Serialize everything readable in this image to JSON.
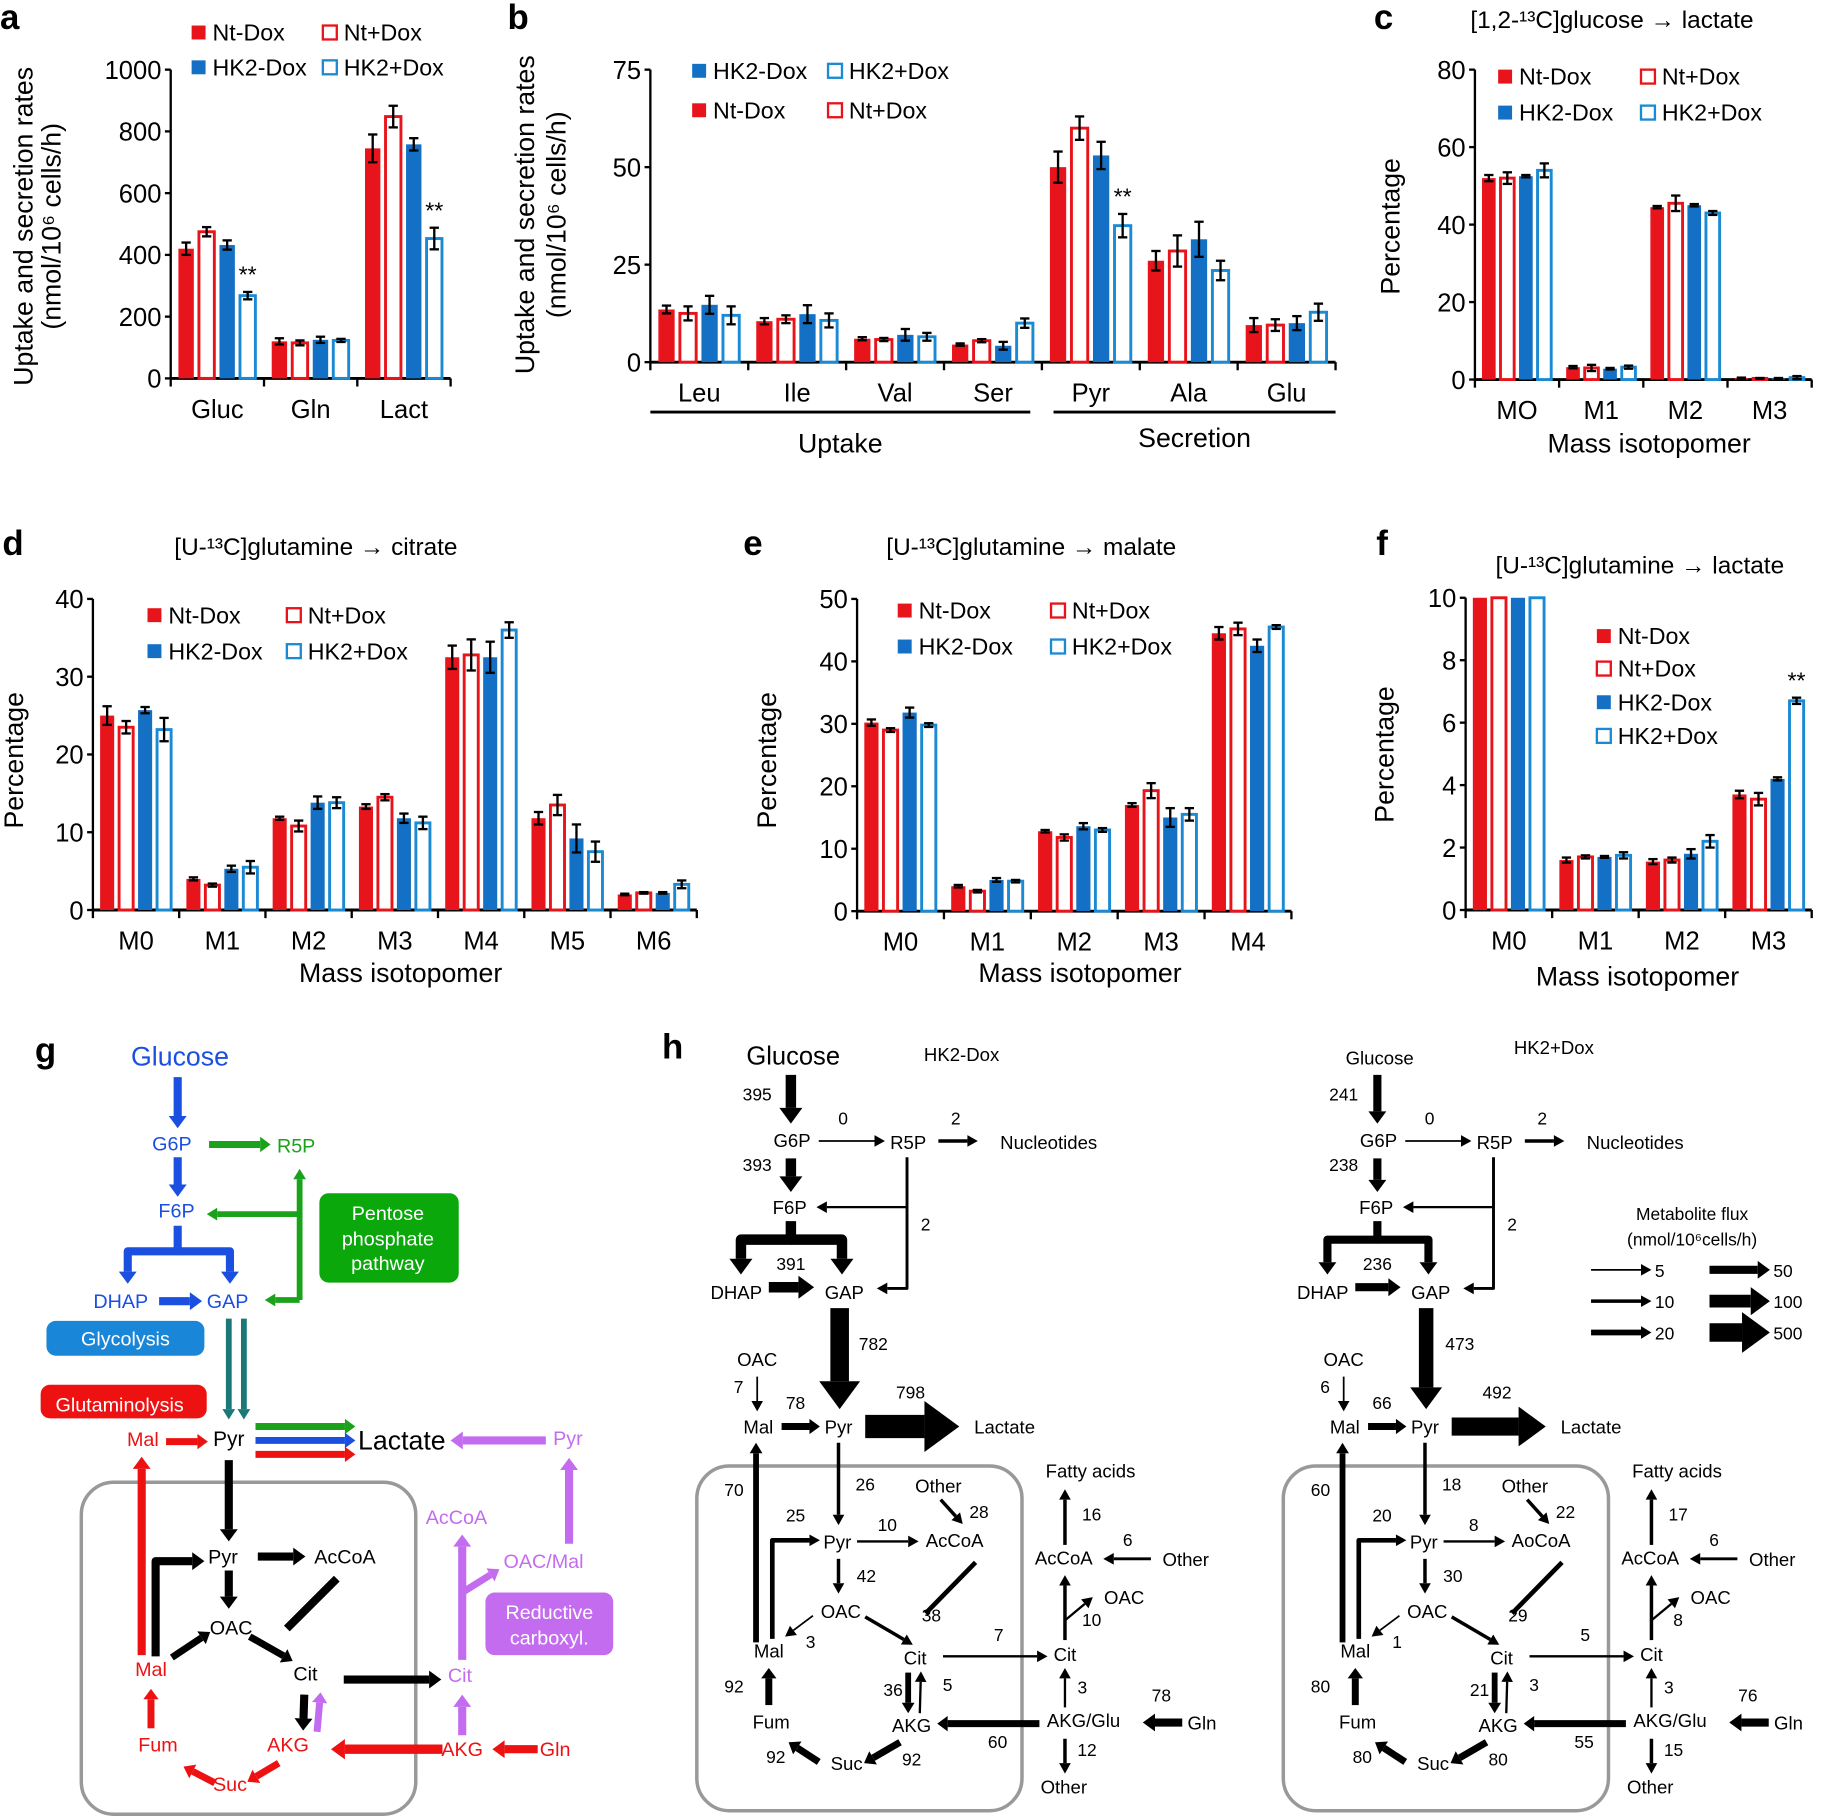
{
  "panel_labels": [
    "a",
    "b",
    "c",
    "d",
    "e",
    "f",
    "g",
    "h"
  ],
  "series_styles": [
    {
      "name": "Nt-Dox",
      "color": "#e8141b",
      "filled": true
    },
    {
      "name": "Nt+Dox",
      "color": "#e8141b",
      "filled": false
    },
    {
      "name": "HK2-Dox",
      "color": "#1470c4",
      "filled": true
    },
    {
      "name": "HK2+Dox",
      "color": "#1a8ad4",
      "filled": false
    }
  ],
  "chart_data": [
    {
      "id": "a",
      "type": "bar",
      "title": "",
      "ylabel": "Uptake and secretion rates",
      "ylabel2": "(nmol/10⁶ cells/h)",
      "xlabel": "",
      "ylim": [
        0,
        1000
      ],
      "yticks": [
        0,
        200,
        400,
        600,
        800,
        1000
      ],
      "categories": [
        "Gluc",
        "Gln",
        "Lact"
      ],
      "series": [
        {
          "name": "Nt-Dox",
          "values": [
            420,
            120,
            745
          ],
          "errors": [
            20,
            10,
            45
          ]
        },
        {
          "name": "Nt+Dox",
          "values": [
            475,
            115,
            848
          ],
          "errors": [
            15,
            8,
            35
          ]
        },
        {
          "name": "HK2-Dox",
          "values": [
            432,
            125,
            758
          ],
          "errors": [
            15,
            10,
            20
          ]
        },
        {
          "name": "HK2+Dox",
          "values": [
            268,
            123,
            453
          ],
          "errors": [
            12,
            5,
            35
          ]
        }
      ],
      "significance": [
        {
          "series": 3,
          "category": 0,
          "mark": "**"
        },
        {
          "series": 3,
          "category": 2,
          "mark": "**"
        }
      ]
    },
    {
      "id": "b",
      "type": "bar",
      "title": "",
      "ylabel": "Uptake and secretion rates",
      "ylabel2": "(nmol/10⁶ cells/h)",
      "xlabel": "",
      "ylim": [
        0,
        75
      ],
      "yticks": [
        0,
        25,
        50,
        75
      ],
      "categories": [
        "Leu",
        "Ile",
        "Val",
        "Ser",
        "Pyr",
        "Ala",
        "Glu"
      ],
      "groups": [
        {
          "label": "Uptake",
          "from": 0,
          "to": 3
        },
        {
          "label": "Secretion",
          "from": 4,
          "to": 6
        }
      ],
      "series": [
        {
          "name": "Nt-Dox",
          "values": [
            13.5,
            10.5,
            6,
            4.5,
            50,
            26,
            9.5
          ],
          "errors": [
            1,
            0.8,
            0.4,
            0.3,
            4,
            2.5,
            1.8
          ]
        },
        {
          "name": "Nt+Dox",
          "values": [
            12.5,
            11,
            5.8,
            5.5,
            60,
            28.5,
            9.5
          ],
          "errors": [
            1.8,
            1,
            0.4,
            0.4,
            3,
            4,
            1.5
          ]
        },
        {
          "name": "HK2-Dox",
          "values": [
            14.7,
            12.3,
            7,
            4.2,
            53,
            31.5,
            10
          ],
          "errors": [
            2.3,
            2.3,
            1.5,
            1,
            3.5,
            4.5,
            1.8
          ]
        },
        {
          "name": "HK2+Dox",
          "values": [
            12,
            10.7,
            6.5,
            10,
            35,
            23.5,
            12.8
          ],
          "errors": [
            2.3,
            1.8,
            1,
            1.2,
            3,
            2.5,
            2.2
          ]
        }
      ],
      "significance": [
        {
          "series": 3,
          "category": 4,
          "mark": "**"
        }
      ]
    },
    {
      "id": "c",
      "type": "bar",
      "title": "[1,2-¹³C]glucose → lactate",
      "ylabel": "Percentage",
      "xlabel": "Mass isotopomer",
      "ylim": [
        0,
        80
      ],
      "yticks": [
        0,
        20,
        40,
        60,
        80
      ],
      "categories": [
        "MO",
        "M1",
        "M2",
        "M3"
      ],
      "series": [
        {
          "name": "Nt-Dox",
          "values": [
            52,
            3.2,
            44.5,
            0.4
          ],
          "errors": [
            0.8,
            0.3,
            0.3,
            0.1
          ]
        },
        {
          "name": "Nt+Dox",
          "values": [
            52,
            3,
            45.5,
            0.3
          ],
          "errors": [
            1.5,
            0.8,
            2,
            0.1
          ]
        },
        {
          "name": "HK2-Dox",
          "values": [
            52.5,
            2.8,
            45,
            0.3
          ],
          "errors": [
            0.3,
            0.2,
            0.3,
            0.1
          ]
        },
        {
          "name": "HK2+Dox",
          "values": [
            54,
            3.2,
            43,
            0.5
          ],
          "errors": [
            1.8,
            0.4,
            0.5,
            0.4
          ]
        }
      ],
      "significance": []
    },
    {
      "id": "d",
      "type": "bar",
      "title": "[U-¹³C]glutamine → citrate",
      "ylabel": "Percentage",
      "xlabel": "Mass isotopomer",
      "ylim": [
        0,
        40
      ],
      "yticks": [
        0,
        10,
        20,
        30,
        40
      ],
      "categories": [
        "M0",
        "M1",
        "M2",
        "M3",
        "M4",
        "M5",
        "M6"
      ],
      "series": [
        {
          "name": "Nt-Dox",
          "values": [
            25,
            4,
            11.8,
            13.3,
            32.5,
            11.8,
            2
          ],
          "errors": [
            1.2,
            0.2,
            0.2,
            0.3,
            1.5,
            0.8,
            0.1
          ]
        },
        {
          "name": "Nt+Dox",
          "values": [
            23.5,
            3.2,
            10.8,
            14.5,
            32.8,
            13.5,
            2.2
          ],
          "errors": [
            0.8,
            0.2,
            0.7,
            0.4,
            2,
            1.3,
            0.1
          ]
        },
        {
          "name": "HK2-Dox",
          "values": [
            25.7,
            5.3,
            13.8,
            11.8,
            32.5,
            9.2,
            2.2
          ],
          "errors": [
            0.4,
            0.4,
            0.8,
            0.6,
            2,
            1.8,
            0.1
          ]
        },
        {
          "name": "HK2+Dox",
          "values": [
            23.2,
            5.5,
            13.8,
            11.2,
            36,
            7.5,
            3.3
          ],
          "errors": [
            1.5,
            0.8,
            0.7,
            0.8,
            1,
            1.3,
            0.5
          ]
        }
      ],
      "significance": []
    },
    {
      "id": "e",
      "type": "bar",
      "title": "[U-¹³C]glutamine → malate",
      "ylabel": "Percentage",
      "xlabel": "Mass isotopomer",
      "ylim": [
        0,
        50
      ],
      "yticks": [
        0,
        10,
        20,
        30,
        40,
        50
      ],
      "categories": [
        "M0",
        "M1",
        "M2",
        "M3",
        "M4"
      ],
      "series": [
        {
          "name": "Nt-Dox",
          "values": [
            30.2,
            4,
            12.8,
            17,
            44.5
          ],
          "errors": [
            0.5,
            0.2,
            0.2,
            0.3,
            1
          ]
        },
        {
          "name": "Nt+Dox",
          "values": [
            29,
            3.2,
            11.8,
            19.3,
            45.2
          ],
          "errors": [
            0.3,
            0.2,
            0.5,
            1.2,
            1
          ]
        },
        {
          "name": "HK2-Dox",
          "values": [
            31.8,
            5,
            13.6,
            15,
            42.5
          ],
          "errors": [
            0.8,
            0.3,
            0.5,
            1.5,
            1
          ]
        },
        {
          "name": "HK2+Dox",
          "values": [
            29.8,
            4.8,
            13,
            15.5,
            45.5
          ],
          "errors": [
            0.3,
            0.2,
            0.3,
            1,
            0.3
          ]
        }
      ],
      "significance": []
    },
    {
      "id": "f",
      "type": "bar",
      "title": "[U-¹³C]glutamine → lactate",
      "ylabel": "Percentage",
      "xlabel": "Mass isotopomer",
      "ylim": [
        0,
        10
      ],
      "yticks": [
        0,
        2,
        4,
        6,
        8,
        10
      ],
      "categories": [
        "M0",
        "M1",
        "M2",
        "M3"
      ],
      "note": "M0 bars exceed the axis range and are clipped at 10",
      "series": [
        {
          "name": "Nt-Dox",
          "values": [
            10,
            1.6,
            1.55,
            3.7
          ],
          "errors": [
            0,
            0.08,
            0.08,
            0.12
          ]
        },
        {
          "name": "Nt+Dox",
          "values": [
            10,
            1.7,
            1.6,
            3.55
          ],
          "errors": [
            0,
            0.05,
            0.08,
            0.2
          ]
        },
        {
          "name": "HK2-Dox",
          "values": [
            10,
            1.7,
            1.8,
            4.2
          ],
          "errors": [
            0,
            0.03,
            0.15,
            0.05
          ]
        },
        {
          "name": "HK2+Dox",
          "values": [
            10,
            1.75,
            2.2,
            6.7
          ],
          "errors": [
            0,
            0.1,
            0.2,
            0.1
          ]
        }
      ],
      "significance": [
        {
          "series": 3,
          "category": 3,
          "mark": "**"
        }
      ]
    }
  ],
  "g": {
    "colors": {
      "blue": "#1a4fe0",
      "green": "#1aa31a",
      "red": "#ee1111",
      "purple": "#c46cf0",
      "teal": "#1b7878",
      "black": "#000000",
      "box_blue": "#1a86d8",
      "box_green": "#0aa80a",
      "box_red": "#ee1111",
      "box_purple": "#c46cf0"
    },
    "glucose": "Glucose",
    "g6p": "G6P",
    "r5p": "R5P",
    "f6p": "F6P",
    "dhap": "DHAP",
    "gap": "GAP",
    "glycolysis": "Glycolysis",
    "ppp1": "Pentose",
    "ppp2": "phosphate",
    "ppp3": "pathway",
    "glutaminolysis": "Glutaminolysis",
    "mal": "Mal",
    "pyr": "Pyr",
    "lactate": "Lactate",
    "pyr_r": "Pyr",
    "accoa_r": "AcCoA",
    "oacmal_r": "OAC/Mal",
    "red1": "Reductive",
    "red2": "carboxyl.",
    "cit_r": "Cit",
    "akg_r": "AKG",
    "gln": "Gln",
    "pyr_m": "Pyr",
    "accoa_m": "AcCoA",
    "oac_m": "OAC",
    "mal_m": "Mal",
    "cit_m": "Cit",
    "fum": "Fum",
    "akg_m": "AKG",
    "suc": "Suc"
  },
  "h": {
    "legend": {
      "title": "Metabolite flux",
      "units": "(nmol/10⁶cells/h)",
      "values": [
        "5",
        "10",
        "20",
        "50",
        "100",
        "500"
      ]
    },
    "panels": [
      {
        "condition": "HK2-Dox",
        "nodes": {
          "glucose": "Glucose",
          "g6p": "G6P",
          "r5p": "R5P",
          "nucleotides": "Nucleotides",
          "f6p": "F6P",
          "dhap": "DHAP",
          "gap": "GAP",
          "oac_in": "OAC",
          "mal_top": "Mal",
          "pyr_top": "Pyr",
          "lactate": "Lactate",
          "other_ac": "Other",
          "pyr_m": "Pyr",
          "accoa_m": "AcCoA",
          "oac_m": "OAC",
          "mal_m": "Mal",
          "cit_m": "Cit",
          "fum": "Fum",
          "akg_m": "AKG",
          "suc": "Suc",
          "fatty_acids": "Fatty acids",
          "accoa_c": "AcCoA",
          "other_c": "Other",
          "oac_c": "OAC",
          "cit_c": "Cit",
          "akg_glu": "AKG/Glu",
          "gln": "Gln",
          "other_out": "Other"
        },
        "fluxes": {
          "glc_g6p": "395",
          "g6p_r5p": "0",
          "r5p_nuc": "2",
          "g6p_f6p": "393",
          "r5p_f6p": "2",
          "f6p_triose": "391",
          "gap_pyr": "782",
          "oac_mal": "7",
          "mal_pyr": "78",
          "pyr_lac": "798",
          "mal_out": "70",
          "pyr_mito": "26",
          "other_accoa": "28",
          "mal_pyrm": "25",
          "pyr_accoa": "10",
          "pyr_oac": "42",
          "accoa_cit": "38",
          "oac_mal_m": "3",
          "cit_export": "7",
          "cit_akg": "36",
          "akg_cit": "5",
          "fum_mal": "92",
          "suc_fum": "92",
          "akg_suc": "92",
          "glu_akg": "60",
          "acc_fa": "16",
          "other_acc": "6",
          "cit_oac": "10",
          "akgglu_cit": "3",
          "gln_glu": "78",
          "glu_other": "12"
        }
      },
      {
        "condition": "HK2+Dox",
        "nodes": {
          "glucose": "Glucose",
          "g6p": "G6P",
          "r5p": "R5P",
          "nucleotides": "Nucleotides",
          "f6p": "F6P",
          "dhap": "DHAP",
          "gap": "GAP",
          "oac_in": "OAC",
          "mal_top": "Mal",
          "pyr_top": "Pyr",
          "lactate": "Lactate",
          "other_ac": "Other",
          "pyr_m": "Pyr",
          "accoa_m": "AoCoA",
          "oac_m": "OAC",
          "mal_m": "Mal",
          "cit_m": "Cit",
          "fum": "Fum",
          "akg_m": "AKG",
          "suc": "Suc",
          "fatty_acids": "Fatty  acids",
          "accoa_c": "AcCoA",
          "other_c": "Other",
          "oac_c": "OAC",
          "cit_c": "Cit",
          "akg_glu": "AKG/Glu",
          "gln": "Gln",
          "other_out": "Other"
        },
        "fluxes": {
          "glc_g6p": "241",
          "g6p_r5p": "0",
          "r5p_nuc": "2",
          "g6p_f6p": "238",
          "r5p_f6p": "2",
          "f6p_triose": "236",
          "gap_pyr": "473",
          "oac_mal": "6",
          "mal_pyr": "66",
          "pyr_lac": "492",
          "mal_out": "60",
          "pyr_mito": "18",
          "other_accoa": "22",
          "mal_pyrm": "20",
          "pyr_accoa": "8",
          "pyr_oac": "30",
          "accoa_cit": "29",
          "oac_mal_m": "1",
          "cit_export": "5",
          "cit_akg": "21",
          "akg_cit": "3",
          "fum_mal": "80",
          "suc_fum": "80",
          "akg_suc": "80",
          "glu_akg": "55",
          "acc_fa": "17",
          "other_acc": "6",
          "cit_oac": "8",
          "akgglu_cit": "3",
          "gln_glu": "76",
          "glu_other": "15"
        }
      }
    ]
  }
}
